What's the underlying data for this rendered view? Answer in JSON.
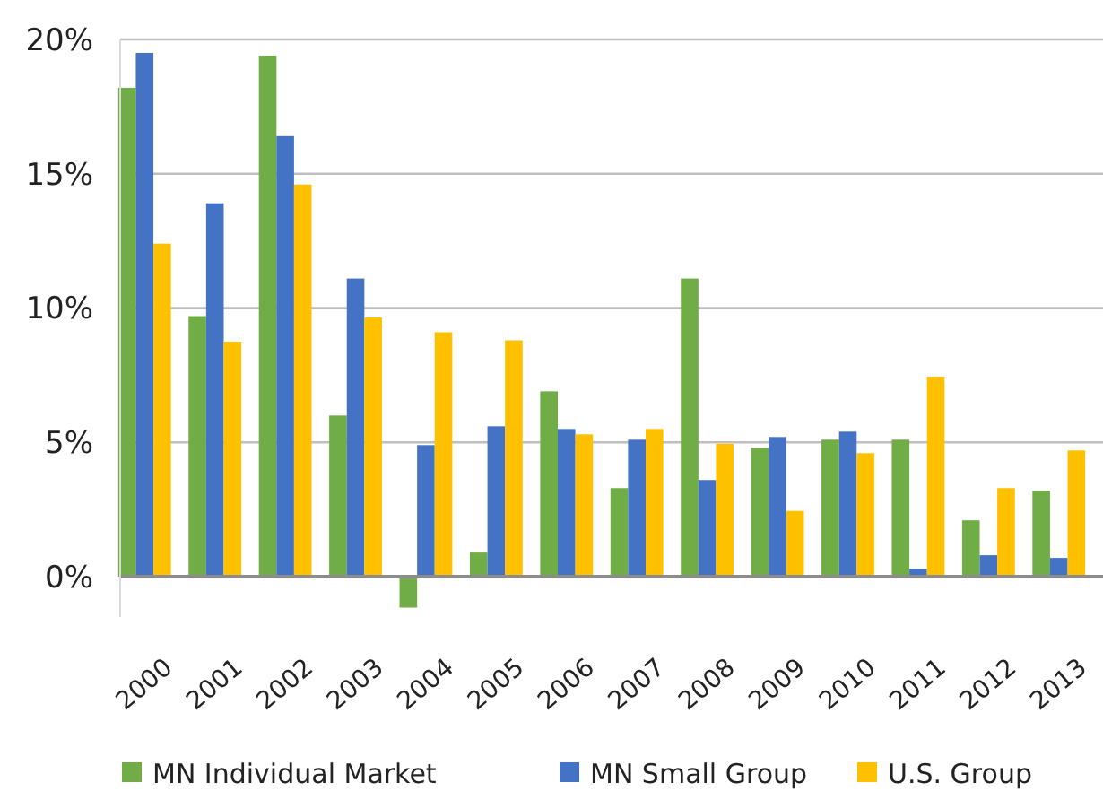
{
  "chart_data": {
    "type": "bar",
    "categories": [
      "2000",
      "2001",
      "2002",
      "2003",
      "2004",
      "2005",
      "2006",
      "2007",
      "2008",
      "2009",
      "2010",
      "2011",
      "2012",
      "2013"
    ],
    "series": [
      {
        "name": "MN Individual Market",
        "color": "#70ad47",
        "values": [
          18.2,
          9.7,
          19.4,
          6.0,
          -1.15,
          0.9,
          6.9,
          3.3,
          11.1,
          4.8,
          5.1,
          5.1,
          2.1,
          3.2
        ]
      },
      {
        "name": "MN Small Group",
        "color": "#4472c4",
        "values": [
          19.5,
          13.9,
          16.4,
          11.1,
          4.9,
          5.6,
          5.5,
          5.1,
          3.6,
          5.2,
          5.4,
          0.3,
          0.8,
          0.7
        ]
      },
      {
        "name": "U.S. Group",
        "color": "#ffc000",
        "values": [
          12.4,
          8.75,
          14.6,
          9.65,
          9.1,
          8.8,
          5.3,
          5.5,
          4.95,
          2.45,
          4.6,
          7.45,
          3.3,
          4.7
        ]
      }
    ],
    "ylim": [
      -1.5,
      20
    ],
    "yticks": [
      {
        "value": 0,
        "label": "0%"
      },
      {
        "value": 5,
        "label": "5%"
      },
      {
        "value": 10,
        "label": "10%"
      },
      {
        "value": 15,
        "label": "15%"
      },
      {
        "value": 20,
        "label": "20%"
      }
    ],
    "grid": "y",
    "legend": "bottom"
  }
}
